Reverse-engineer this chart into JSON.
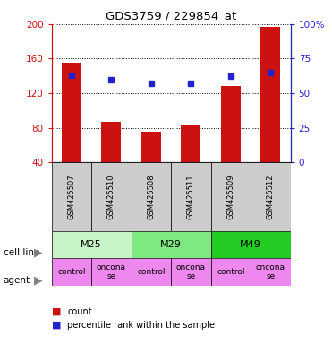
{
  "title": "GDS3759 / 229854_at",
  "samples": [
    "GSM425507",
    "GSM425510",
    "GSM425508",
    "GSM425511",
    "GSM425509",
    "GSM425512"
  ],
  "counts": [
    155,
    87,
    75,
    84,
    128,
    197
  ],
  "percentile_ranks": [
    63,
    60,
    57,
    57,
    62,
    65
  ],
  "ylim_left": [
    40,
    200
  ],
  "ylim_right": [
    0,
    100
  ],
  "yticks_left": [
    40,
    80,
    120,
    160,
    200
  ],
  "yticks_right": [
    0,
    25,
    50,
    75,
    100
  ],
  "cell_lines": [
    {
      "label": "M25",
      "cols": [
        0,
        1
      ],
      "color": "#c8f5c8"
    },
    {
      "label": "M29",
      "cols": [
        2,
        3
      ],
      "color": "#80e880"
    },
    {
      "label": "M49",
      "cols": [
        4,
        5
      ],
      "color": "#22cc22"
    }
  ],
  "agents": [
    {
      "label": "control",
      "col": 0,
      "color": "#ee88ee"
    },
    {
      "label": "oncona\nse",
      "col": 1,
      "color": "#ee88ee"
    },
    {
      "label": "control",
      "col": 2,
      "color": "#ee88ee"
    },
    {
      "label": "oncona\nse",
      "col": 3,
      "color": "#ee88ee"
    },
    {
      "label": "control",
      "col": 4,
      "color": "#ee88ee"
    },
    {
      "label": "oncona\nse",
      "col": 5,
      "color": "#ee88ee"
    }
  ],
  "bar_color": "#cc1111",
  "dot_color": "#2222cc",
  "bar_width": 0.5,
  "left_axis_color": "#cc1111",
  "right_axis_color": "#2222cc",
  "sample_box_color": "#cccccc",
  "legend_items": [
    {
      "color": "#cc1111",
      "label": "count"
    },
    {
      "color": "#2222cc",
      "label": "percentile rank within the sample"
    }
  ],
  "cell_line_label": "cell line",
  "agent_label": "agent"
}
